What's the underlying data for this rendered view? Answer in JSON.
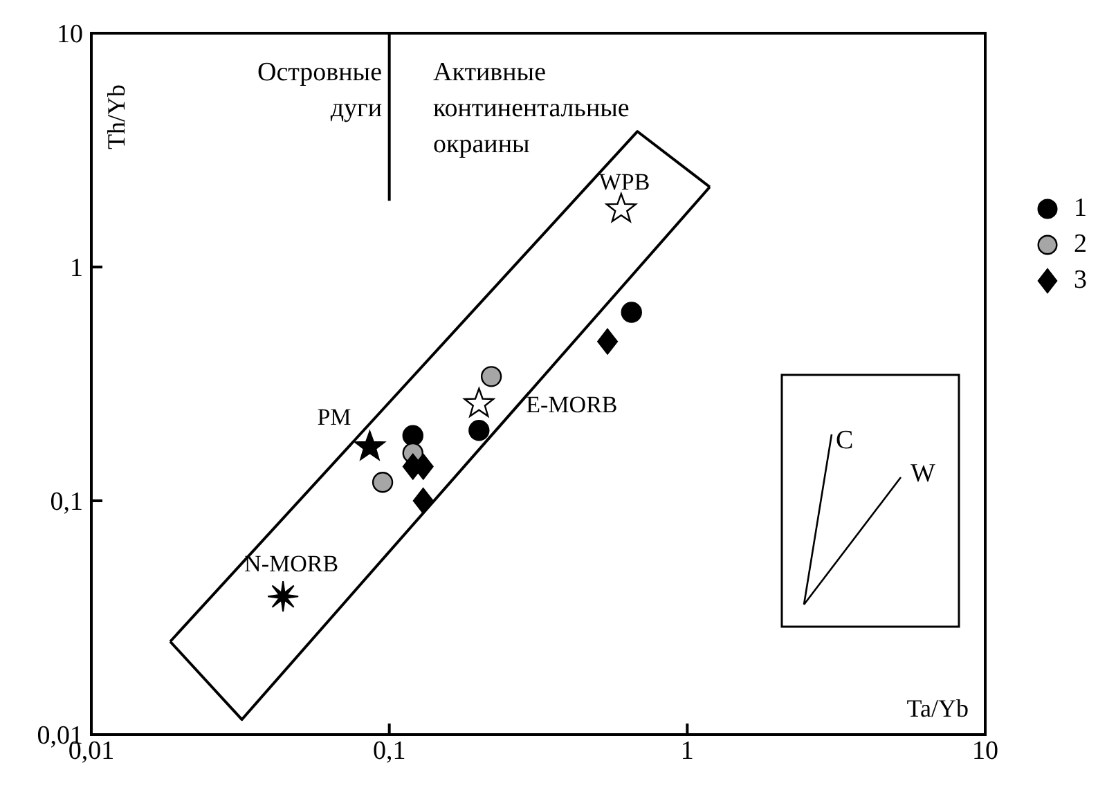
{
  "chart_data": {
    "type": "scatter",
    "xlabel": "Ta/Yb",
    "ylabel": "Th/Yb",
    "log": "xy",
    "xlim": [
      0.01,
      10
    ],
    "ylim": [
      0.01,
      10
    ],
    "xticks": [
      {
        "value": 0.01,
        "label": "0,01"
      },
      {
        "value": 0.1,
        "label": "0,1"
      },
      1,
      10
    ],
    "yticks": [
      {
        "value": 0.01,
        "label": "0,01"
      },
      {
        "value": 0.1,
        "label": "0,1"
      },
      1,
      10
    ],
    "legend": "right",
    "annotations": [
      "Островные дуги",
      "Активные континентальные окраины",
      "C",
      "W"
    ],
    "series": [
      {
        "name": "1",
        "marker": "circle",
        "color": "#000000",
        "x": [
          0.65,
          0.12,
          0.2
        ],
        "values": [
          0.64,
          0.19,
          0.2
        ]
      },
      {
        "name": "2",
        "marker": "circle",
        "color": "#a6a6a6",
        "x": [
          0.22,
          0.12,
          0.095
        ],
        "values": [
          0.34,
          0.16,
          0.12
        ]
      },
      {
        "name": "3",
        "marker": "diamond",
        "color": "#000000",
        "x": [
          0.54,
          0.12,
          0.13,
          0.13
        ],
        "values": [
          0.48,
          0.14,
          0.14,
          0.1
        ]
      },
      {
        "name": "WPB",
        "marker": "star",
        "color": "#ffffff",
        "x": [
          0.6
        ],
        "values": [
          1.77
        ]
      },
      {
        "name": "PM",
        "marker": "star",
        "color": "#000000",
        "x": [
          0.086
        ],
        "values": [
          0.17
        ]
      },
      {
        "name": "E-MORB",
        "marker": "star",
        "color": "#ffffff",
        "x": [
          0.2
        ],
        "values": [
          0.26
        ]
      },
      {
        "name": "N-MORB",
        "marker": "cross",
        "color": "#000000",
        "x": [
          0.044
        ],
        "values": [
          0.039
        ]
      },
      {
        "type": "line",
        "color": "#000000",
        "x": [
          0.0184,
          0.032,
          1.19
        ],
        "values": [
          0.025,
          0.0116,
          2.2
        ]
      },
      {
        "type": "line",
        "color": "#000000",
        "x": [
          0.0184,
          0.68,
          1.19
        ],
        "values": [
          0.025,
          3.8,
          2.2
        ]
      },
      {
        "type": "line",
        "color": "#000000",
        "x": [
          0.1,
          0.1
        ],
        "values": [
          10,
          1.92
        ]
      }
    ]
  }
}
